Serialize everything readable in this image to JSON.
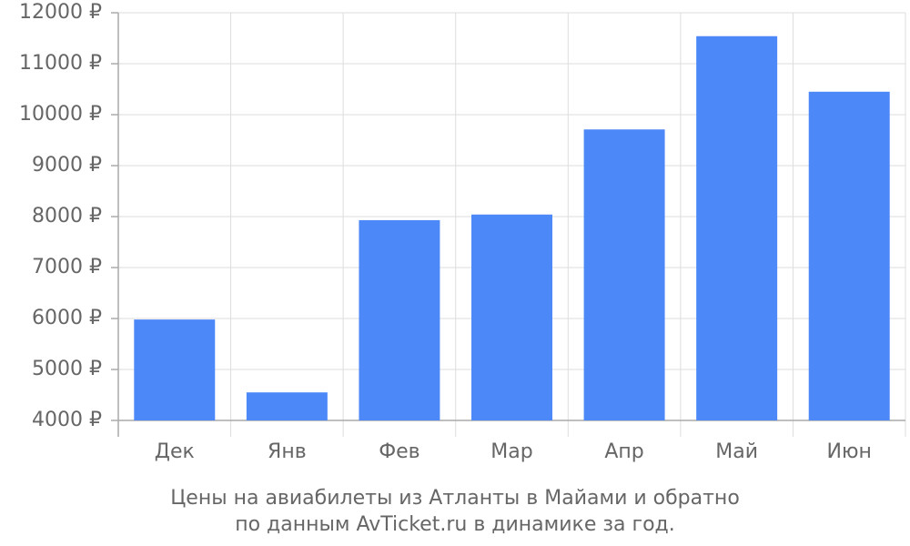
{
  "chart_data": {
    "type": "bar",
    "caption": [
      "Цены на авиабилеты из Атланты в Майами и обратно",
      "по данным AvTicket.ru в динамике за год."
    ],
    "categories": [
      "Дек",
      "Янв",
      "Фев",
      "Мар",
      "Апр",
      "Май",
      "Июн"
    ],
    "values": [
      5980,
      4550,
      7930,
      8040,
      9710,
      11540,
      10450
    ],
    "color": "#4d88f9",
    "ylim": [
      4000,
      12000
    ],
    "yticks": [
      {
        "value": 4000,
        "label": "4000 ₽"
      },
      {
        "value": 5000,
        "label": "5000 ₽"
      },
      {
        "value": 6000,
        "label": "6000 ₽"
      },
      {
        "value": 7000,
        "label": "7000 ₽"
      },
      {
        "value": 8000,
        "label": "8000 ₽"
      },
      {
        "value": 9000,
        "label": "9000 ₽"
      },
      {
        "value": 10000,
        "label": "10000 ₽"
      },
      {
        "value": 11000,
        "label": "11000 ₽"
      },
      {
        "value": 12000,
        "label": "12000 ₽"
      }
    ],
    "grid": true
  }
}
